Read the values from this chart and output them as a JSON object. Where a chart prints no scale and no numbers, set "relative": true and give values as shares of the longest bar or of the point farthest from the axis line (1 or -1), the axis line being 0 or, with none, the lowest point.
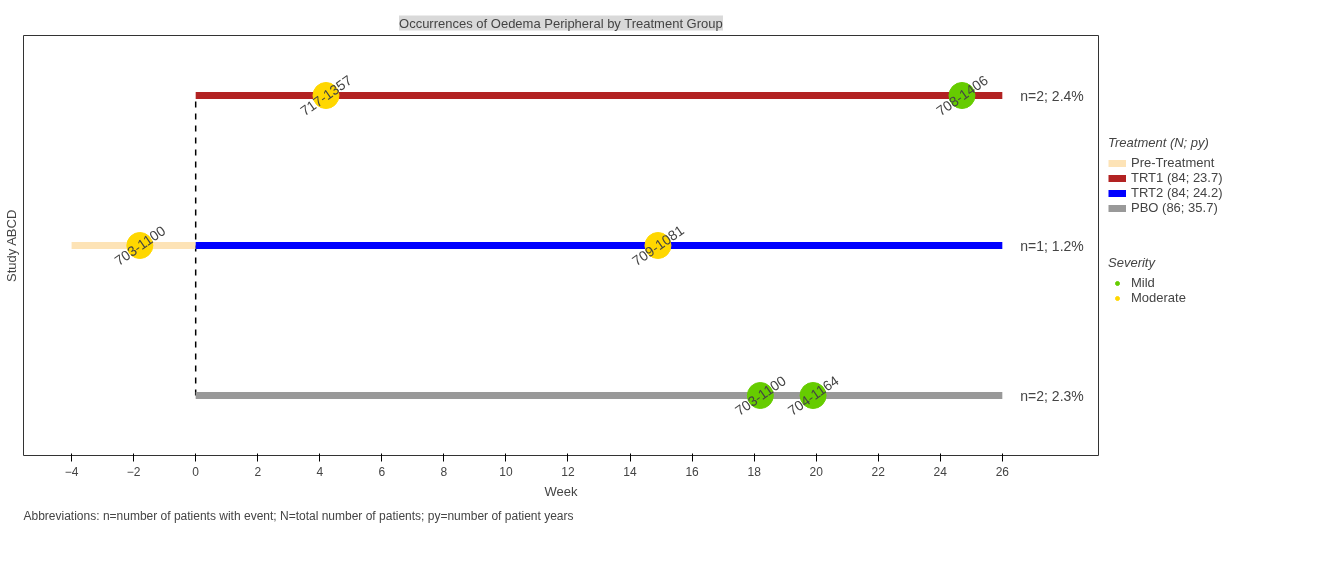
{
  "chart_data": {
    "type": "line",
    "title": "Occurrences of Oedema Peripheral by Treatment Group",
    "xlabel": "Week",
    "ylabel": "Study ABCD",
    "legend_title": "Treatment (N; py)",
    "relative": true,
    "xlim": [
      -5.55,
      29.1
    ],
    "xticks": [
      -4,
      -2,
      0,
      2,
      4,
      6,
      8,
      10,
      12,
      14,
      16,
      18,
      20,
      22,
      24,
      26
    ],
    "grid": false,
    "legend": "right",
    "tick_labels": "x",
    "line_style": "solid",
    "series": [
      {
        "name": "Pre-Treatment",
        "color": "#fde3b6",
        "x": [
          -4,
          0
        ],
        "values": [
          0.5,
          0.5
        ]
      },
      {
        "name": "TRT1 (84; 23.7)",
        "color": "#b22222",
        "x": [
          0,
          26
        ],
        "values": [
          1,
          1
        ]
      },
      {
        "name": "TRT2 (84; 24.2)",
        "color": "#0000ff",
        "x": [
          0,
          26
        ],
        "values": [
          0.5,
          0.5
        ]
      },
      {
        "name": "PBO (86; 35.7)",
        "color": "#999999",
        "x": [
          0,
          26
        ],
        "values": [
          0,
          0
        ]
      },
      {
        "name": "Mild",
        "type": "scatter",
        "marker": "circle",
        "color": "#66cc00",
        "x": [
          24.7,
          18.2,
          19.9
        ],
        "values": [
          1,
          0,
          0
        ]
      },
      {
        "name": "Moderate",
        "type": "scatter",
        "marker": "circle",
        "color": "#ffd700",
        "x": [
          4.2,
          -1.8,
          14.9
        ],
        "values": [
          1,
          0.5,
          0.5
        ]
      }
    ],
    "ref_lines": [
      {
        "axis": "x",
        "value": 0,
        "label": null,
        "color": "#000000",
        "line_style": "dashed"
      }
    ],
    "annotations": [
      "Severity",
      "Abbreviations: n=number of patients with event; N=total number of patients; py=number of patient years",
      {
        "text": "717-1357",
        "x": 4.2,
        "y": 1
      },
      {
        "text": "708-1406",
        "x": 24.7,
        "y": 1
      },
      {
        "text": "703-1100",
        "x": -1.8,
        "y": 0.5
      },
      {
        "text": "709-1081",
        "x": 14.9,
        "y": 0.5
      },
      {
        "text": "703-1100",
        "x": 18.2,
        "y": 0
      },
      {
        "text": "704-1164",
        "x": 19.9,
        "y": 0
      },
      {
        "text": "n=2; 2.4%",
        "x": 26,
        "y": 1
      },
      {
        "text": "n=1; 1.2%",
        "x": 26,
        "y": 0.5
      },
      {
        "text": "n=2; 2.3%",
        "x": 26,
        "y": 0
      }
    ]
  }
}
